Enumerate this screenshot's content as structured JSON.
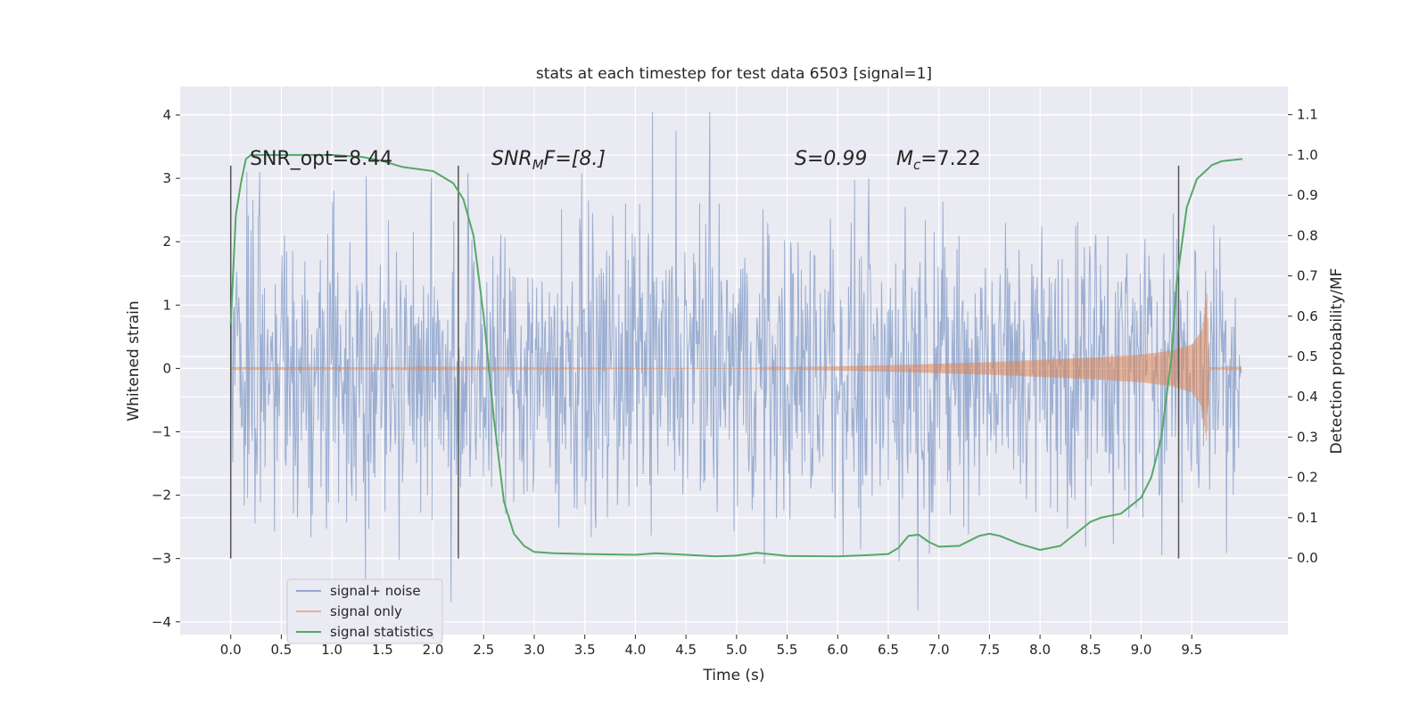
{
  "chart_data": {
    "type": "line",
    "title": "stats at each timestep for test data 6503 [signal=1]",
    "xlabel": "Time (s)",
    "ylabel": "Whitened strain",
    "ylabel_right": "Detection probability/MF",
    "xlim": [
      -0.5,
      10.45
    ],
    "ylim": [
      -4.2,
      4.45
    ],
    "ylim_right": [
      -0.19,
      1.17
    ],
    "xticks": [
      0.0,
      0.5,
      1.0,
      1.5,
      2.0,
      2.5,
      3.0,
      3.5,
      4.0,
      4.5,
      5.0,
      5.5,
      6.0,
      6.5,
      7.0,
      7.5,
      8.0,
      8.5,
      9.0,
      9.5
    ],
    "yticks": [
      -4,
      -3,
      -2,
      -1,
      0,
      1,
      2,
      3,
      4
    ],
    "yticks_right": [
      0.0,
      0.1,
      0.2,
      0.3,
      0.4,
      0.5,
      0.6,
      0.7,
      0.8,
      0.9,
      1.0,
      1.1
    ],
    "grid": true,
    "legend_position": "lower-left",
    "colors": {
      "signal_noise": "#4c72b0",
      "signal_only": "#dd8452",
      "signal_statistics": "#55a868",
      "background": "#eaeaf2",
      "vline": "#555555"
    },
    "annotations": {
      "snr_opt": "SNR_opt=8.44",
      "snr_mf_base": "SNR",
      "snr_mf_sub": "M",
      "snr_mf_rest": "F=[8.]",
      "s_text": "S=0.99",
      "mc_base": "M",
      "mc_sub": "c",
      "mc_rest": "=7.22"
    },
    "vertical_lines_x": [
      0.0,
      2.25,
      9.37
    ],
    "vertical_lines_range": [
      -3.0,
      3.2
    ],
    "series": [
      {
        "name": "signal+ noise",
        "description": "whitened strain, noise spread roughly +/-2.5 with spikes to 4",
        "x_range": [
          0.0,
          9.99
        ],
        "band": [
          -2.0,
          1.9
        ]
      },
      {
        "name": "signal only",
        "x_range": [
          0.0,
          9.99
        ],
        "envelope": {
          "x": [
            0.0,
            0.7,
            5.0,
            6.5,
            7.5,
            8.5,
            9.0,
            9.3,
            9.5,
            9.6,
            9.65,
            9.68,
            9.99
          ],
          "amp": [
            0.02,
            0.02,
            0.0,
            0.05,
            0.1,
            0.17,
            0.22,
            0.28,
            0.38,
            0.6,
            1.2,
            0.02,
            0.01
          ]
        }
      },
      {
        "name": "signal statistics",
        "axis": "right",
        "x": [
          0.0,
          0.05,
          0.1,
          0.15,
          0.2,
          0.3,
          0.5,
          1.0,
          1.3,
          1.5,
          1.7,
          2.0,
          2.2,
          2.3,
          2.4,
          2.5,
          2.6,
          2.7,
          2.8,
          2.9,
          3.0,
          3.2,
          3.5,
          4.0,
          4.2,
          4.5,
          4.8,
          5.0,
          5.2,
          5.5,
          6.0,
          6.3,
          6.5,
          6.6,
          6.7,
          6.8,
          6.9,
          7.0,
          7.2,
          7.4,
          7.5,
          7.6,
          7.8,
          8.0,
          8.2,
          8.4,
          8.5,
          8.6,
          8.8,
          9.0,
          9.1,
          9.2,
          9.3,
          9.35,
          9.45,
          9.55,
          9.7,
          9.8,
          10.0
        ],
        "values": [
          0.58,
          0.85,
          0.93,
          0.99,
          1.0,
          1.0,
          1.0,
          1.0,
          0.995,
          0.985,
          0.97,
          0.96,
          0.93,
          0.89,
          0.8,
          0.6,
          0.35,
          0.14,
          0.06,
          0.03,
          0.015,
          0.012,
          0.01,
          0.008,
          0.012,
          0.008,
          0.004,
          0.006,
          0.013,
          0.005,
          0.004,
          0.007,
          0.01,
          0.025,
          0.055,
          0.058,
          0.04,
          0.028,
          0.03,
          0.055,
          0.06,
          0.055,
          0.035,
          0.02,
          0.03,
          0.07,
          0.09,
          0.1,
          0.11,
          0.15,
          0.2,
          0.3,
          0.5,
          0.68,
          0.87,
          0.94,
          0.975,
          0.985,
          0.99
        ]
      }
    ]
  }
}
